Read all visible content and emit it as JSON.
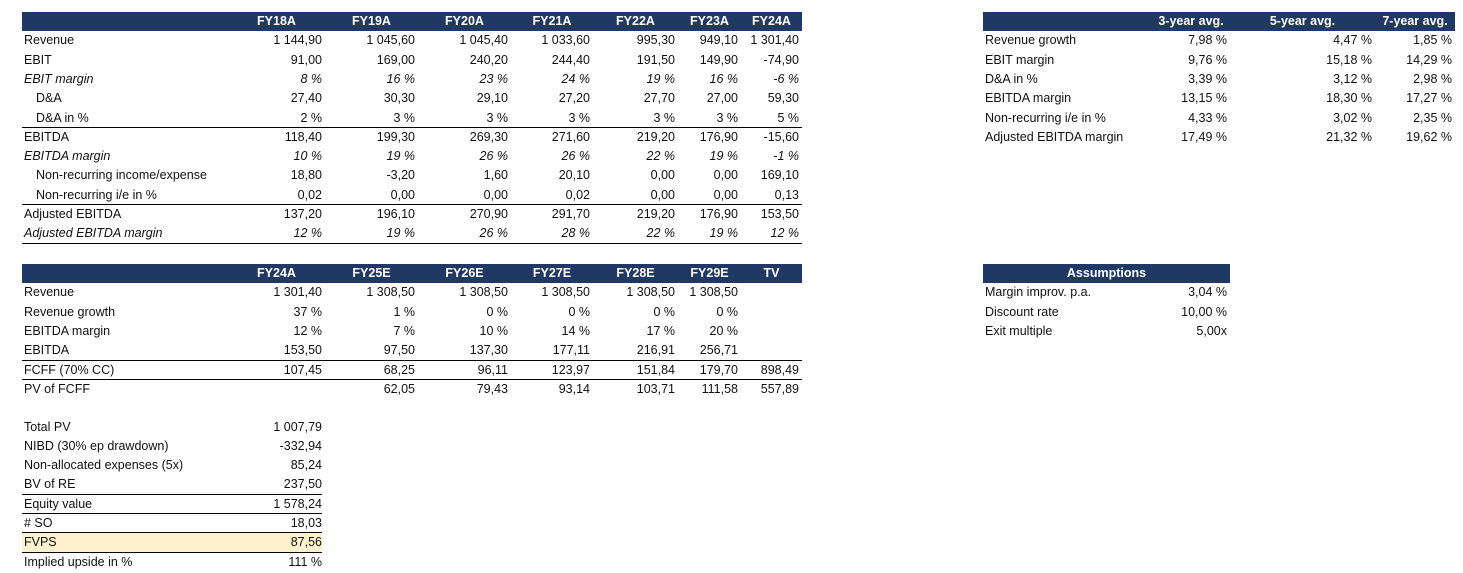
{
  "historical_table": {
    "columns": [
      "FY18A",
      "FY19A",
      "FY20A",
      "FY21A",
      "FY22A",
      "FY23A",
      "FY24A"
    ],
    "rows": [
      {
        "label": "Revenue",
        "values": [
          "1 144,90",
          "1 045,60",
          "1 045,40",
          "1 033,60",
          "995,30",
          "949,10",
          "1 301,40"
        ]
      },
      {
        "label": "EBIT",
        "values": [
          "91,00",
          "169,00",
          "240,20",
          "244,40",
          "191,50",
          "149,90",
          "-74,90"
        ]
      },
      {
        "label": "EBIT margin",
        "values": [
          "8 %",
          "16 %",
          "23 %",
          "24 %",
          "19 %",
          "16 %",
          "-6 %"
        ]
      },
      {
        "label": "D&A",
        "values": [
          "27,40",
          "30,30",
          "29,10",
          "27,20",
          "27,70",
          "27,00",
          "59,30"
        ]
      },
      {
        "label": "D&A in %",
        "values": [
          "2 %",
          "3 %",
          "3 %",
          "3 %",
          "3 %",
          "3 %",
          "5 %"
        ]
      },
      {
        "label": "EBITDA",
        "values": [
          "118,40",
          "199,30",
          "269,30",
          "271,60",
          "219,20",
          "176,90",
          "-15,60"
        ]
      },
      {
        "label": "EBITDA margin",
        "values": [
          "10 %",
          "19 %",
          "26 %",
          "26 %",
          "22 %",
          "19 %",
          "-1 %"
        ]
      },
      {
        "label": "Non-recurring income/expense",
        "values": [
          "18,80",
          "-3,20",
          "1,60",
          "20,10",
          "0,00",
          "0,00",
          "169,10"
        ]
      },
      {
        "label": "Non-recurring i/e in %",
        "values": [
          "0,02",
          "0,00",
          "0,00",
          "0,02",
          "0,00",
          "0,00",
          "0,13"
        ]
      },
      {
        "label": "Adjusted EBITDA",
        "values": [
          "137,20",
          "196,10",
          "270,90",
          "291,70",
          "219,20",
          "176,90",
          "153,50"
        ]
      },
      {
        "label": "Adjusted EBITDA margin",
        "values": [
          "12 %",
          "19 %",
          "26 %",
          "28 %",
          "22 %",
          "19 %",
          "12 %"
        ]
      }
    ]
  },
  "forecast_table": {
    "columns": [
      "FY24A",
      "FY25E",
      "FY26E",
      "FY27E",
      "FY28E",
      "FY29E",
      "TV"
    ],
    "rows": [
      {
        "label": "Revenue",
        "values": [
          "1 301,40",
          "1 308,50",
          "1 308,50",
          "1 308,50",
          "1 308,50",
          "1 308,50",
          null
        ]
      },
      {
        "label": "Revenue growth",
        "values": [
          "37 %",
          "1 %",
          "0 %",
          "0 %",
          "0 %",
          "0 %",
          null
        ]
      },
      {
        "label": "EBITDA margin",
        "values": [
          "12 %",
          "7 %",
          "10 %",
          "14 %",
          "17 %",
          "20 %",
          null
        ]
      },
      {
        "label": "EBITDA",
        "values": [
          "153,50",
          "97,50",
          "137,30",
          "177,11",
          "216,91",
          "256,71",
          null
        ]
      },
      {
        "label": "FCFF (70% CC)",
        "values": [
          "107,45",
          "68,25",
          "96,11",
          "123,97",
          "151,84",
          "179,70",
          "898,49"
        ]
      },
      {
        "label": "PV of FCFF",
        "values": [
          null,
          "62,05",
          "79,43",
          "93,14",
          "103,71",
          "111,58",
          "557,89"
        ]
      }
    ]
  },
  "valuation_table": {
    "rows": [
      {
        "label": "Total PV",
        "value": "1 007,79"
      },
      {
        "label": "NIBD (30% ep drawdown)",
        "value": "-332,94"
      },
      {
        "label": "Non-allocated expenses (5x)",
        "value": "85,24"
      },
      {
        "label": "BV of RE",
        "value": "237,50"
      },
      {
        "label": "Equity value",
        "value": "1 578,24"
      },
      {
        "label": "# SO",
        "value": "18,03"
      },
      {
        "label": "FVPS",
        "value": "87,56"
      },
      {
        "label": "Implied upside in %",
        "value": "111 %"
      }
    ]
  },
  "averages_table": {
    "columns": [
      "3-year avg.",
      "5-year avg.",
      "7-year avg."
    ],
    "rows": [
      {
        "label": "Revenue growth",
        "values": [
          "7,98 %",
          "4,47 %",
          "1,85 %"
        ]
      },
      {
        "label": "EBIT margin",
        "values": [
          "9,76 %",
          "15,18 %",
          "14,29 %"
        ]
      },
      {
        "label": "D&A in %",
        "values": [
          "3,39 %",
          "3,12 %",
          "2,98 %"
        ]
      },
      {
        "label": "EBITDA margin",
        "values": [
          "13,15 %",
          "18,30 %",
          "17,27 %"
        ]
      },
      {
        "label": "Non-recurring i/e in %",
        "values": [
          "4,33 %",
          "3,02 %",
          "2,35 %"
        ]
      },
      {
        "label": "Adjusted EBITDA margin",
        "values": [
          "17,49 %",
          "21,32 %",
          "19,62 %"
        ]
      }
    ]
  },
  "assumptions_table": {
    "title": "Assumptions",
    "rows": [
      {
        "label": "Margin improv. p.a.",
        "value": "3,04 %"
      },
      {
        "label": "Discount rate",
        "value": "10,00 %"
      },
      {
        "label": "Exit multiple",
        "value": "5,00x"
      }
    ]
  }
}
